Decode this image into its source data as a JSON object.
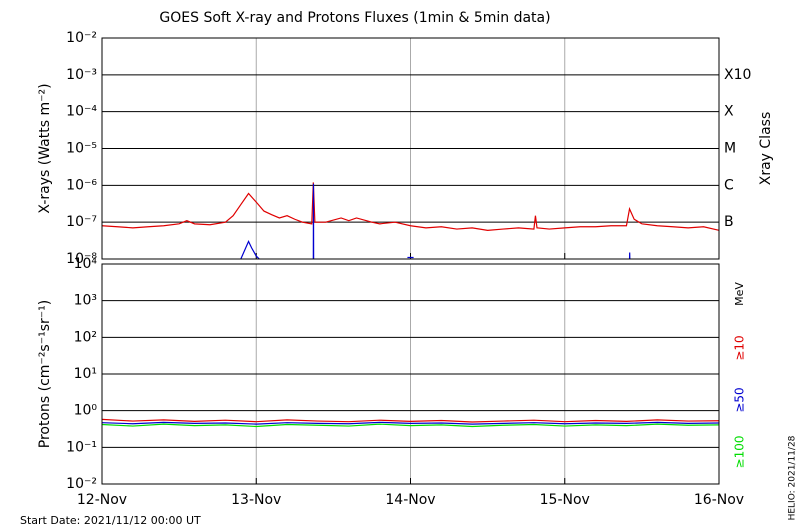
{
  "footer": {
    "start": "Start Date: 2021/11/12 00:00 UT",
    "helio": "HELIO: 2021/11/28"
  },
  "chart_data": [
    {
      "type": "line",
      "title": "GOES Soft X-ray and Protons Fluxes   (1min & 5min data)",
      "y_label": "X-rays (Watts m⁻²)",
      "y2_label": "Xray Class",
      "log": true,
      "grid": true,
      "xlim": [
        12,
        16
      ],
      "xticks": [
        {
          "value": 12,
          "label": "12-Nov"
        },
        {
          "value": 13,
          "label": "13-Nov"
        },
        {
          "value": 14,
          "label": "14-Nov"
        },
        {
          "value": 15,
          "label": "15-Nov"
        },
        {
          "value": 16,
          "label": "16-Nov"
        }
      ],
      "ylim": [
        1e-08,
        0.01
      ],
      "yticks": [
        {
          "value": 1e-08,
          "label": "10⁻⁸"
        },
        {
          "value": 1e-07,
          "label": "10⁻⁷"
        },
        {
          "value": 1e-06,
          "label": "10⁻⁶"
        },
        {
          "value": 1e-05,
          "label": "10⁻⁵"
        },
        {
          "value": 0.0001,
          "label": "10⁻⁴"
        },
        {
          "value": 0.001,
          "label": "10⁻³"
        },
        {
          "value": 0.01,
          "label": "10⁻²"
        }
      ],
      "y2lim": [
        1e-08,
        0.01
      ],
      "y2ticks": [
        {
          "value": 1e-07,
          "label": "B"
        },
        {
          "value": 1e-06,
          "label": "C"
        },
        {
          "value": 1e-05,
          "label": "M"
        },
        {
          "value": 0.0001,
          "label": "X"
        },
        {
          "value": 0.001,
          "label": "X10"
        }
      ],
      "series": [
        {
          "color": "#e00000",
          "x": [
            12.0,
            12.1,
            12.2,
            12.3,
            12.4,
            12.5,
            12.55,
            12.6,
            12.7,
            12.8,
            12.85,
            12.9,
            12.95,
            13.0,
            13.05,
            13.1,
            13.15,
            13.2,
            13.25,
            13.3,
            13.36,
            13.37,
            13.38,
            13.45,
            13.55,
            13.6,
            13.65,
            13.75,
            13.8,
            13.9,
            14.0,
            14.1,
            14.2,
            14.3,
            14.4,
            14.5,
            14.6,
            14.7,
            14.8,
            14.81,
            14.82,
            14.9,
            15.0,
            15.1,
            15.2,
            15.3,
            15.4,
            15.42,
            15.45,
            15.5,
            15.6,
            15.7,
            15.8,
            15.9,
            16.0
          ],
          "values": [
            8e-08,
            7.5e-08,
            7e-08,
            7.5e-08,
            8e-08,
            9e-08,
            1.1e-07,
            9e-08,
            8.5e-08,
            1e-07,
            1.5e-07,
            3e-07,
            6e-07,
            3.5e-07,
            2e-07,
            1.6e-07,
            1.3e-07,
            1.5e-07,
            1.2e-07,
            1e-07,
            9e-08,
            1.2e-06,
            1e-07,
            1e-07,
            1.3e-07,
            1.1e-07,
            1.3e-07,
            1e-07,
            9e-08,
            1e-07,
            8e-08,
            7e-08,
            7.5e-08,
            6.5e-08,
            7e-08,
            6e-08,
            6.5e-08,
            7e-08,
            6.5e-08,
            1.5e-07,
            7e-08,
            6.5e-08,
            7e-08,
            7.5e-08,
            7.5e-08,
            8e-08,
            8e-08,
            2.3e-07,
            1.2e-07,
            9e-08,
            8e-08,
            7.5e-08,
            7e-08,
            7.5e-08,
            6e-08
          ]
        },
        {
          "color": "#0000d0",
          "x": [
            12.9,
            12.95,
            12.97,
            13.0,
            13.02,
            13.2,
            13.37,
            13.371,
            13.372,
            13.6,
            13.98,
            14.02,
            14.5,
            15.42,
            15.421,
            15.422
          ],
          "values": [
            1e-08,
            3e-08,
            2e-08,
            1.2e-08,
            1e-08,
            null,
            1e-08,
            1.1e-06,
            1e-08,
            null,
            1.1e-08,
            1.1e-08,
            null,
            1e-08,
            1.5e-08,
            1e-08
          ]
        }
      ]
    },
    {
      "type": "line",
      "y_label": "Protons (cm⁻²s⁻¹sr⁻¹)",
      "unit": "MeV",
      "log": true,
      "grid": true,
      "threshold": 10,
      "xlim": [
        12,
        16
      ],
      "xticks": [
        {
          "value": 12,
          "label": "12-Nov"
        },
        {
          "value": 13,
          "label": "13-Nov"
        },
        {
          "value": 14,
          "label": "14-Nov"
        },
        {
          "value": 15,
          "label": "15-Nov"
        },
        {
          "value": 16,
          "label": "16-Nov"
        }
      ],
      "ylim": [
        0.01,
        10000.0
      ],
      "yticks": [
        {
          "value": 0.01,
          "label": "10⁻²"
        },
        {
          "value": 0.1,
          "label": "10⁻¹"
        },
        {
          "value": 1,
          "label": "10⁰"
        },
        {
          "value": 10,
          "label": "10¹"
        },
        {
          "value": 100,
          "label": "10²"
        },
        {
          "value": 1000,
          "label": "10³"
        },
        {
          "value": 10000,
          "label": "10⁴"
        }
      ],
      "series": [
        {
          "name": "≥100",
          "color": "#00dd00",
          "x": [
            12.0,
            12.2,
            12.4,
            12.6,
            12.8,
            13.0,
            13.2,
            13.4,
            13.6,
            13.8,
            14.0,
            14.2,
            14.4,
            14.6,
            14.8,
            15.0,
            15.2,
            15.4,
            15.6,
            15.8,
            16.0
          ],
          "values": [
            0.42,
            0.38,
            0.43,
            0.39,
            0.41,
            0.37,
            0.42,
            0.4,
            0.38,
            0.43,
            0.39,
            0.41,
            0.37,
            0.4,
            0.42,
            0.38,
            0.41,
            0.39,
            0.43,
            0.4,
            0.41
          ]
        },
        {
          "name": "≥50",
          "color": "#0000d0",
          "x": [
            12.0,
            12.2,
            12.4,
            12.6,
            12.8,
            13.0,
            13.2,
            13.4,
            13.6,
            13.8,
            14.0,
            14.2,
            14.4,
            14.6,
            14.8,
            15.0,
            15.2,
            15.4,
            15.6,
            15.8,
            16.0
          ],
          "values": [
            0.47,
            0.44,
            0.48,
            0.45,
            0.46,
            0.43,
            0.47,
            0.45,
            0.44,
            0.48,
            0.45,
            0.46,
            0.43,
            0.45,
            0.47,
            0.44,
            0.46,
            0.45,
            0.48,
            0.45,
            0.46
          ]
        },
        {
          "name": "≥10",
          "color": "#e00000",
          "x": [
            12.0,
            12.2,
            12.4,
            12.6,
            12.8,
            13.0,
            13.2,
            13.4,
            13.6,
            13.8,
            14.0,
            14.2,
            14.4,
            14.6,
            14.8,
            15.0,
            15.2,
            15.4,
            15.6,
            15.8,
            16.0
          ],
          "values": [
            0.58,
            0.52,
            0.56,
            0.51,
            0.55,
            0.5,
            0.56,
            0.52,
            0.5,
            0.55,
            0.51,
            0.54,
            0.49,
            0.52,
            0.55,
            0.5,
            0.54,
            0.51,
            0.56,
            0.52,
            0.53
          ]
        }
      ]
    }
  ]
}
